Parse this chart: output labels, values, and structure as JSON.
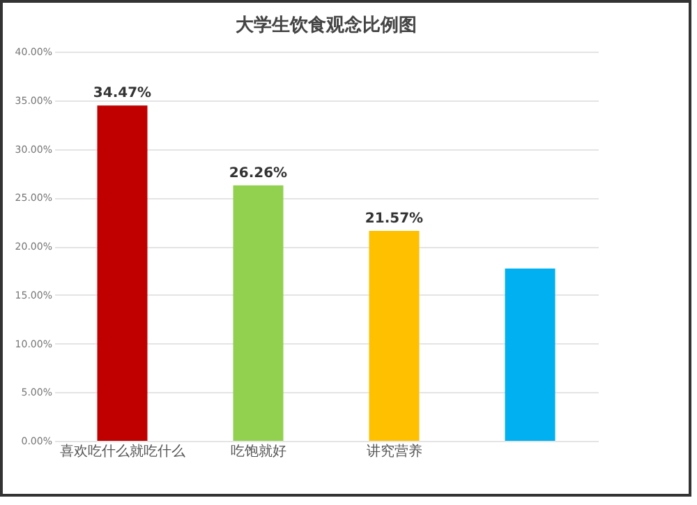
{
  "chart_data": {
    "type": "bar",
    "title": "大学生饮食观念比例图",
    "categories": [
      "喜欢吃什么就吃什么",
      "吃饱就好",
      "讲究营养",
      null
    ],
    "values": [
      34.47,
      26.26,
      21.57,
      17.7
    ],
    "colors": [
      "#c00000",
      "#92d050",
      "#ffc000",
      "#00b0f0"
    ],
    "value_labels": [
      "34.47%",
      "26.26%",
      "21.57%",
      null
    ],
    "ylim": [
      0,
      40
    ],
    "yticks": [
      {
        "value": 0,
        "label": "0.00%"
      },
      {
        "value": 5,
        "label": "5.00%"
      },
      {
        "value": 10,
        "label": "10.00%"
      },
      {
        "value": 15,
        "label": "15.00%"
      },
      {
        "value": 20,
        "label": "20.00%"
      },
      {
        "value": 25,
        "label": "25.00%"
      },
      {
        "value": 30,
        "label": "30.00%"
      },
      {
        "value": 35,
        "label": "35.00%"
      },
      {
        "value": 40,
        "label": "40.00%"
      }
    ],
    "grid": "y"
  }
}
